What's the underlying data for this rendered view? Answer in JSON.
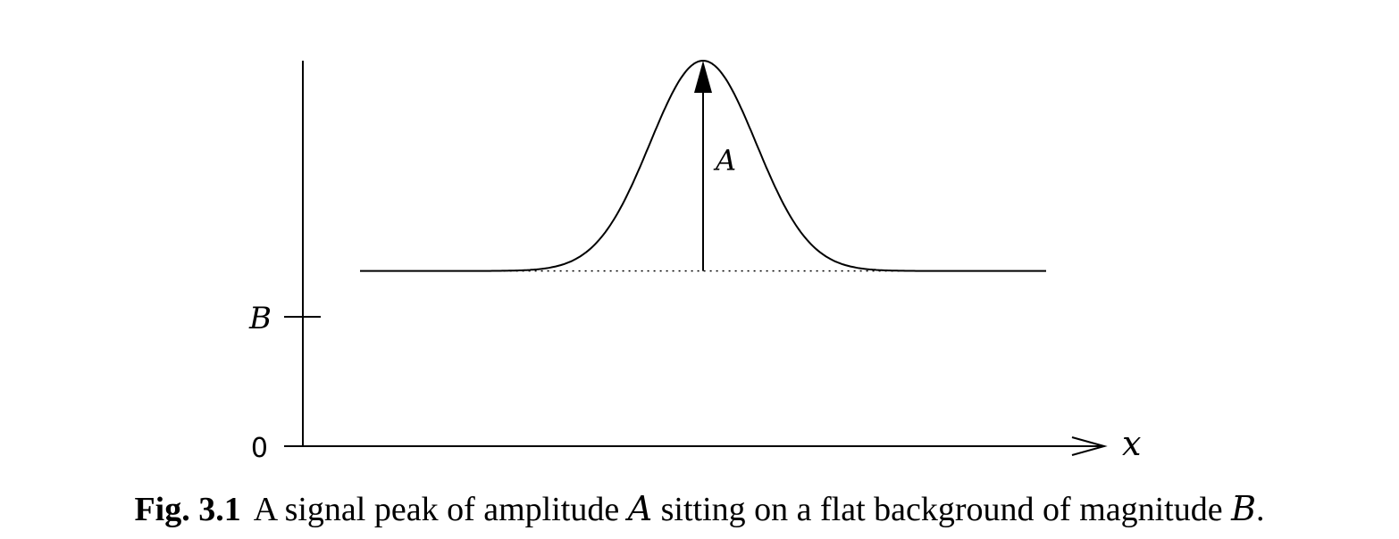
{
  "chart_data": {
    "type": "line",
    "title": "",
    "xlabel": "x",
    "ylabel": "",
    "y_tick_labels": [
      "0",
      "B"
    ],
    "peak_label": "A",
    "series": [
      {
        "values_description_x_units": "arbitrary",
        "x": [
          0,
          4,
          5,
          6,
          7,
          7.5,
          8,
          8.5,
          9,
          9.5,
          10,
          10.5,
          11,
          11.5,
          12,
          12.5,
          13,
          14,
          15,
          16,
          20
        ],
        "y": [
          1.0,
          1.0,
          1.0,
          1.01,
          1.08,
          1.18,
          1.36,
          1.61,
          1.88,
          2.1,
          2.2,
          2.1,
          1.88,
          1.61,
          1.36,
          1.18,
          1.08,
          1.01,
          1.0,
          1.0,
          1.0
        ]
      }
    ],
    "background_level": 1.0,
    "peak_amplitude": 1.2,
    "peak_x": 10,
    "xlim": [
      0,
      20
    ],
    "ylim": [
      0,
      2.2
    ]
  },
  "caption": {
    "fig_number": "Fig. 3.1",
    "text_before": "A signal peak of amplitude ",
    "math_a": "A",
    "text_middle": " sitting on a flat background of magnitude ",
    "math_b": "B",
    "text_end": "."
  }
}
